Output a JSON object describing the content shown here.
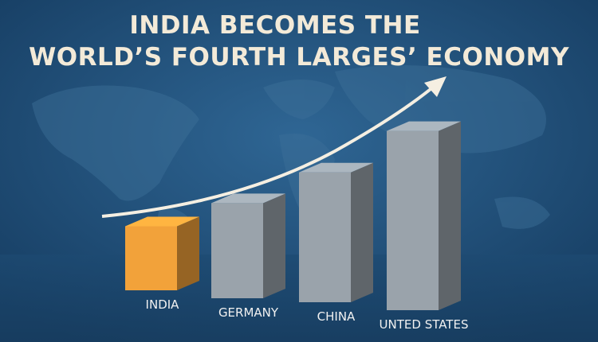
{
  "chart_data": {
    "type": "bar3d",
    "title_lines": [
      "INDIA BECOMES THE",
      "WORLD’S FOURTH LARGES’ ECONOMY"
    ],
    "categories": [
      "INDIA",
      "GERMANY",
      "CHINA",
      "UNTED STATES"
    ],
    "values": [
      35,
      52,
      71,
      98
    ],
    "colors": [
      "#f2a23a",
      "#9aa3ab",
      "#9aa3ab",
      "#9aa3ab"
    ]
  }
}
